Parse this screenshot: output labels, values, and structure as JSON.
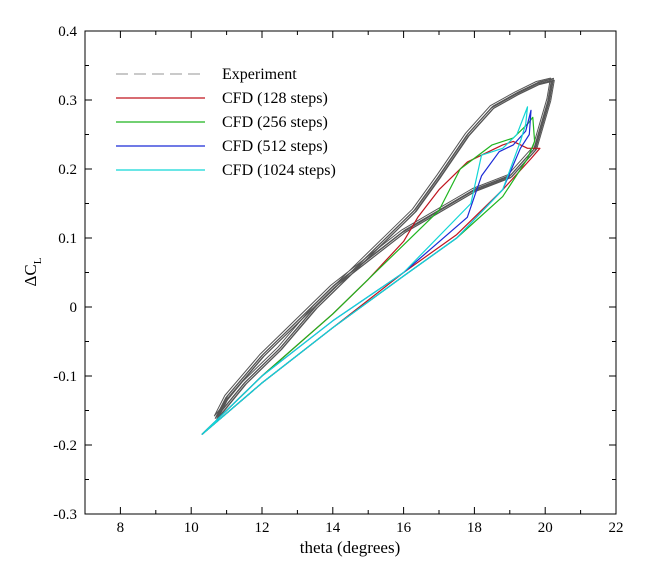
{
  "chart_data": {
    "type": "line",
    "title": "",
    "xlabel": "theta (degrees)",
    "ylabel_main": "ΔC",
    "ylabel_sub": "L",
    "xlim": [
      7,
      22
    ],
    "ylim": [
      -0.3,
      0.4
    ],
    "x_ticks": [
      8,
      10,
      12,
      14,
      16,
      18,
      20,
      22
    ],
    "x_tick_labels": [
      "8",
      "10",
      "12",
      "14",
      "16",
      "18",
      "20",
      "22"
    ],
    "y_ticks": [
      -0.3,
      -0.2,
      -0.1,
      0,
      0.1,
      0.2,
      0.3,
      0.4
    ],
    "y_tick_labels": [
      "-0.3",
      "-0.2",
      "-0.1",
      "0",
      "0.1",
      "0.2",
      "0.3",
      "0.4"
    ],
    "grid": false,
    "legend_position": "top-left",
    "series": [
      {
        "name": "Experiment",
        "color": "#555555",
        "dashed_in_legend": true,
        "x": [
          10.7,
          11.5,
          12.5,
          13.5,
          14.5,
          15.5,
          16.3,
          17.0,
          17.8,
          18.5,
          19.2,
          19.8,
          20.2,
          20.1,
          19.7,
          19.0,
          18.0,
          17.0,
          16.0,
          15.0,
          14.0,
          13.0,
          12.0,
          11.0,
          10.7
        ],
        "y": [
          -0.16,
          -0.11,
          -0.06,
          0.0,
          0.05,
          0.1,
          0.14,
          0.19,
          0.25,
          0.29,
          0.31,
          0.325,
          0.33,
          0.3,
          0.23,
          0.19,
          0.17,
          0.14,
          0.11,
          0.07,
          0.03,
          -0.02,
          -0.07,
          -0.13,
          -0.16
        ]
      },
      {
        "name": "CFD (128 steps)",
        "color": "#c0141e",
        "x": [
          10.3,
          12.0,
          14.0,
          16.0,
          17.5,
          18.8,
          19.6,
          19.85,
          19.5,
          19.1,
          18.8,
          18.4,
          17.8,
          17.0,
          16.4,
          16.0,
          15.0,
          14.0,
          12.0,
          10.3
        ],
        "y": [
          -0.185,
          -0.11,
          -0.03,
          0.05,
          0.105,
          0.17,
          0.215,
          0.23,
          0.23,
          0.24,
          0.235,
          0.225,
          0.21,
          0.17,
          0.13,
          0.095,
          0.04,
          -0.01,
          -0.1,
          -0.185
        ]
      },
      {
        "name": "CFD (256 steps)",
        "color": "#1fb51f",
        "x": [
          10.3,
          12.0,
          14.0,
          16.0,
          17.5,
          18.8,
          19.5,
          19.7,
          19.65,
          19.5,
          19.1,
          18.5,
          17.6,
          17.0,
          16.0,
          14.0,
          12.0,
          10.3
        ],
        "y": [
          -0.185,
          -0.11,
          -0.03,
          0.045,
          0.1,
          0.16,
          0.215,
          0.24,
          0.275,
          0.265,
          0.245,
          0.235,
          0.2,
          0.14,
          0.09,
          -0.01,
          -0.1,
          -0.185
        ]
      },
      {
        "name": "CFD (512 steps)",
        "color": "#1b2bd6",
        "x": [
          10.3,
          12.0,
          14.0,
          16.0,
          17.5,
          18.8,
          19.3,
          19.55,
          19.6,
          19.45,
          19.1,
          18.7,
          18.2,
          17.8,
          16.0,
          14.0,
          12.0,
          10.3
        ],
        "y": [
          -0.185,
          -0.11,
          -0.03,
          0.045,
          0.1,
          0.17,
          0.23,
          0.25,
          0.285,
          0.255,
          0.235,
          0.225,
          0.19,
          0.13,
          0.05,
          -0.02,
          -0.1,
          -0.185
        ]
      },
      {
        "name": "CFD (1024 steps)",
        "color": "#12d6d6",
        "x": [
          10.3,
          12.0,
          14.0,
          16.0,
          17.5,
          18.8,
          19.3,
          19.45,
          19.5,
          19.2,
          18.8,
          18.2,
          17.9,
          16.0,
          14.0,
          12.0,
          10.3
        ],
        "y": [
          -0.185,
          -0.11,
          -0.03,
          0.045,
          0.1,
          0.17,
          0.24,
          0.265,
          0.29,
          0.25,
          0.23,
          0.22,
          0.15,
          0.05,
          -0.02,
          -0.1,
          -0.185
        ]
      }
    ]
  }
}
